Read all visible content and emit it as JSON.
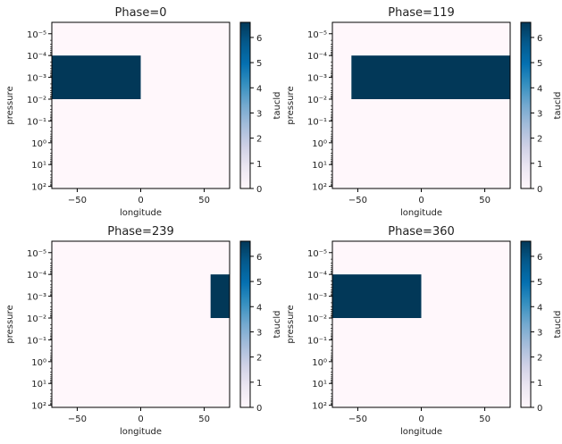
{
  "chart_data": [
    {
      "type": "heatmap",
      "title": "Phase=0",
      "xlabel": "longitude",
      "ylabel": "pressure",
      "colorbar_label": "taucld",
      "xlim": [
        -70,
        70
      ],
      "ylim": [
        125,
        3e-06
      ],
      "yscale": "log",
      "xticks": [
        -50,
        0,
        50
      ],
      "yticks": [
        "10^-5",
        "10^-4",
        "10^-3",
        "10^-2",
        "10^-1",
        "10^0",
        "10^1",
        "10^2"
      ],
      "cbar_ticks": [
        0,
        1,
        2,
        3,
        4,
        5,
        6
      ],
      "clim": [
        0,
        6.6
      ],
      "colormap": "PuBu",
      "cells": [
        {
          "lon": [
            -70,
            0
          ],
          "pressure": [
            0.0001,
            0.01
          ],
          "value": 6.6
        }
      ]
    },
    {
      "type": "heatmap",
      "title": "Phase=119",
      "xlabel": "longitude",
      "ylabel": "pressure",
      "colorbar_label": "taucld",
      "xlim": [
        -70,
        70
      ],
      "ylim": [
        125,
        3e-06
      ],
      "yscale": "log",
      "xticks": [
        -50,
        0,
        50
      ],
      "yticks": [
        "10^-5",
        "10^-4",
        "10^-3",
        "10^-2",
        "10^-1",
        "10^0",
        "10^1",
        "10^2"
      ],
      "cbar_ticks": [
        0,
        1,
        2,
        3,
        4,
        5,
        6
      ],
      "clim": [
        0,
        6.6
      ],
      "colormap": "PuBu",
      "cells": [
        {
          "lon": [
            -55,
            70
          ],
          "pressure": [
            0.0001,
            0.01
          ],
          "value": 6.6
        }
      ]
    },
    {
      "type": "heatmap",
      "title": "Phase=239",
      "xlabel": "longitude",
      "ylabel": "pressure",
      "colorbar_label": "taucld",
      "xlim": [
        -70,
        70
      ],
      "ylim": [
        125,
        3e-06
      ],
      "yscale": "log",
      "xticks": [
        -50,
        0,
        50
      ],
      "yticks": [
        "10^-5",
        "10^-4",
        "10^-3",
        "10^-2",
        "10^-1",
        "10^0",
        "10^1",
        "10^2"
      ],
      "cbar_ticks": [
        0,
        1,
        2,
        3,
        4,
        5,
        6
      ],
      "clim": [
        0,
        6.6
      ],
      "colormap": "PuBu",
      "cells": [
        {
          "lon": [
            55,
            70
          ],
          "pressure": [
            0.0001,
            0.01
          ],
          "value": 6.6
        }
      ]
    },
    {
      "type": "heatmap",
      "title": "Phase=360",
      "xlabel": "longitude",
      "ylabel": "pressure",
      "colorbar_label": "taucld",
      "xlim": [
        -70,
        70
      ],
      "ylim": [
        125,
        3e-06
      ],
      "yscale": "log",
      "xticks": [
        -50,
        0,
        50
      ],
      "yticks": [
        "10^-5",
        "10^-4",
        "10^-3",
        "10^-2",
        "10^-1",
        "10^0",
        "10^1",
        "10^2"
      ],
      "cbar_ticks": [
        0,
        1,
        2,
        3,
        4,
        5,
        6
      ],
      "clim": [
        0,
        6.6
      ],
      "colormap": "PuBu",
      "cells": [
        {
          "lon": [
            -70,
            0
          ],
          "pressure": [
            0.0001,
            0.01
          ],
          "value": 6.6
        }
      ]
    }
  ],
  "colors": {
    "low": "#fff7fb",
    "high": "#023858"
  }
}
